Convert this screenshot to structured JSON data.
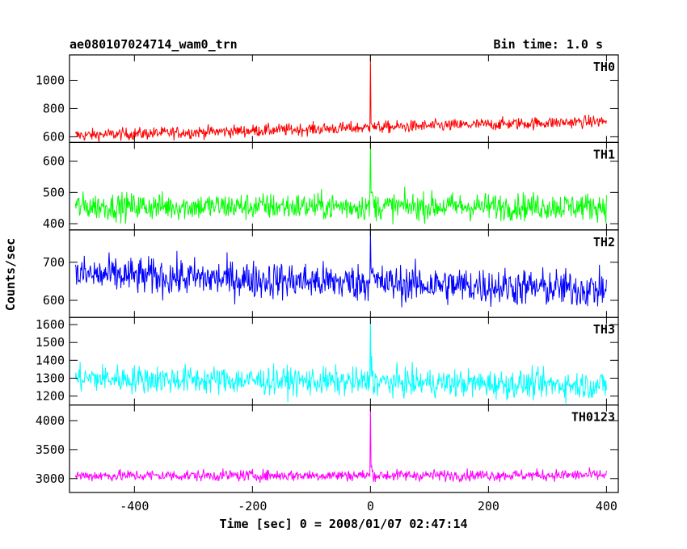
{
  "chart_data": {
    "type": "line",
    "title": "ae080107024714_wam0_trn",
    "subtitle": "Bin time: 1.0 s",
    "xlabel": "Time [sec] 0 = 2008/01/07 02:47:14",
    "ylabel": "Counts/sec",
    "xlim": [
      -510,
      420
    ],
    "x_ticks": [
      -400,
      -200,
      0,
      200,
      400
    ],
    "x_range": [
      -500,
      400
    ],
    "spike_x": 0,
    "grid": false,
    "panels": [
      {
        "name": "TH0",
        "color": "#ff0000",
        "ylim": [
          560,
          1180
        ],
        "y_ticks": [
          600,
          800,
          1000
        ],
        "baseline_start": 610,
        "baseline_end": 710,
        "noise": 22,
        "spike_peak": 1180
      },
      {
        "name": "TH1",
        "color": "#00ff00",
        "ylim": [
          380,
          660
        ],
        "y_ticks": [
          400,
          500,
          600
        ],
        "baseline_start": 455,
        "baseline_end": 455,
        "noise": 22,
        "spike_peak": 660
      },
      {
        "name": "TH2",
        "color": "#0000ff",
        "ylim": [
          555,
          785
        ],
        "y_ticks": [
          600,
          700
        ],
        "baseline_start": 668,
        "baseline_end": 628,
        "noise": 25,
        "spike_peak": 785
      },
      {
        "name": "TH3",
        "color": "#00ffff",
        "ylim": [
          1150,
          1640
        ],
        "y_ticks": [
          1200,
          1300,
          1400,
          1500,
          1600
        ],
        "baseline_start": 1300,
        "baseline_end": 1260,
        "noise": 40,
        "spike_peak": 1640
      },
      {
        "name": "TH0123",
        "color": "#ff00ff",
        "ylim": [
          2760,
          4270
        ],
        "y_ticks": [
          3000,
          3500,
          4000
        ],
        "baseline_start": 3050,
        "baseline_end": 3060,
        "noise": 50,
        "spike_peak": 4270
      }
    ]
  }
}
